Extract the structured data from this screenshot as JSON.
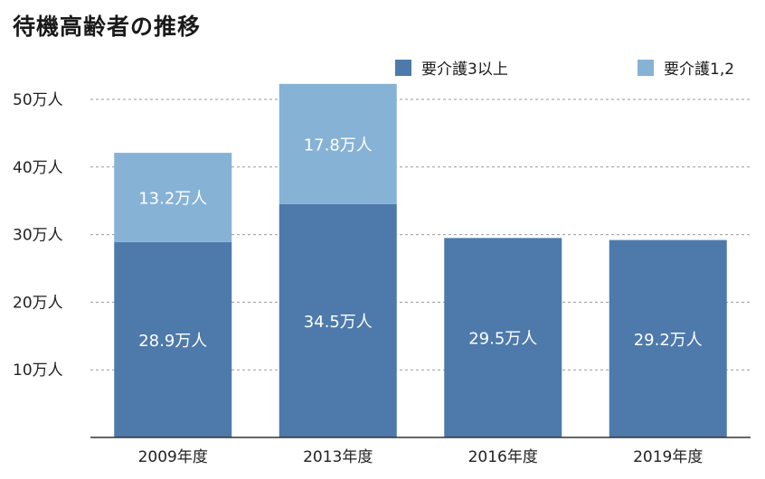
{
  "title": "待機高齢者の推移",
  "colors": {
    "care3plus": "#4e79ab",
    "care12": "#86b2d6",
    "grid": "#999999",
    "axis": "#333333"
  },
  "chart_data": {
    "type": "bar",
    "stacked": true,
    "title": "待機高齢者の推移",
    "categories": [
      "2009年度",
      "2013年度",
      "2016年度",
      "2019年度"
    ],
    "series": [
      {
        "name": "要介護3以上",
        "values": [
          28.9,
          34.5,
          29.5,
          29.2
        ],
        "labels": [
          "28.9万人",
          "34.5万人",
          "29.5万人",
          "29.2万人"
        ]
      },
      {
        "name": "要介護1,2",
        "values": [
          13.2,
          17.8,
          null,
          null
        ],
        "labels": [
          "13.2万人",
          "17.8万人",
          "",
          ""
        ]
      }
    ],
    "ylim": [
      0,
      50
    ],
    "yticks": [
      10,
      20,
      30,
      40,
      50
    ],
    "ytick_labels": [
      "10万人",
      "20万人",
      "30万人",
      "40万人",
      "50万人"
    ],
    "grid": true,
    "legend_placement": "top-right"
  }
}
